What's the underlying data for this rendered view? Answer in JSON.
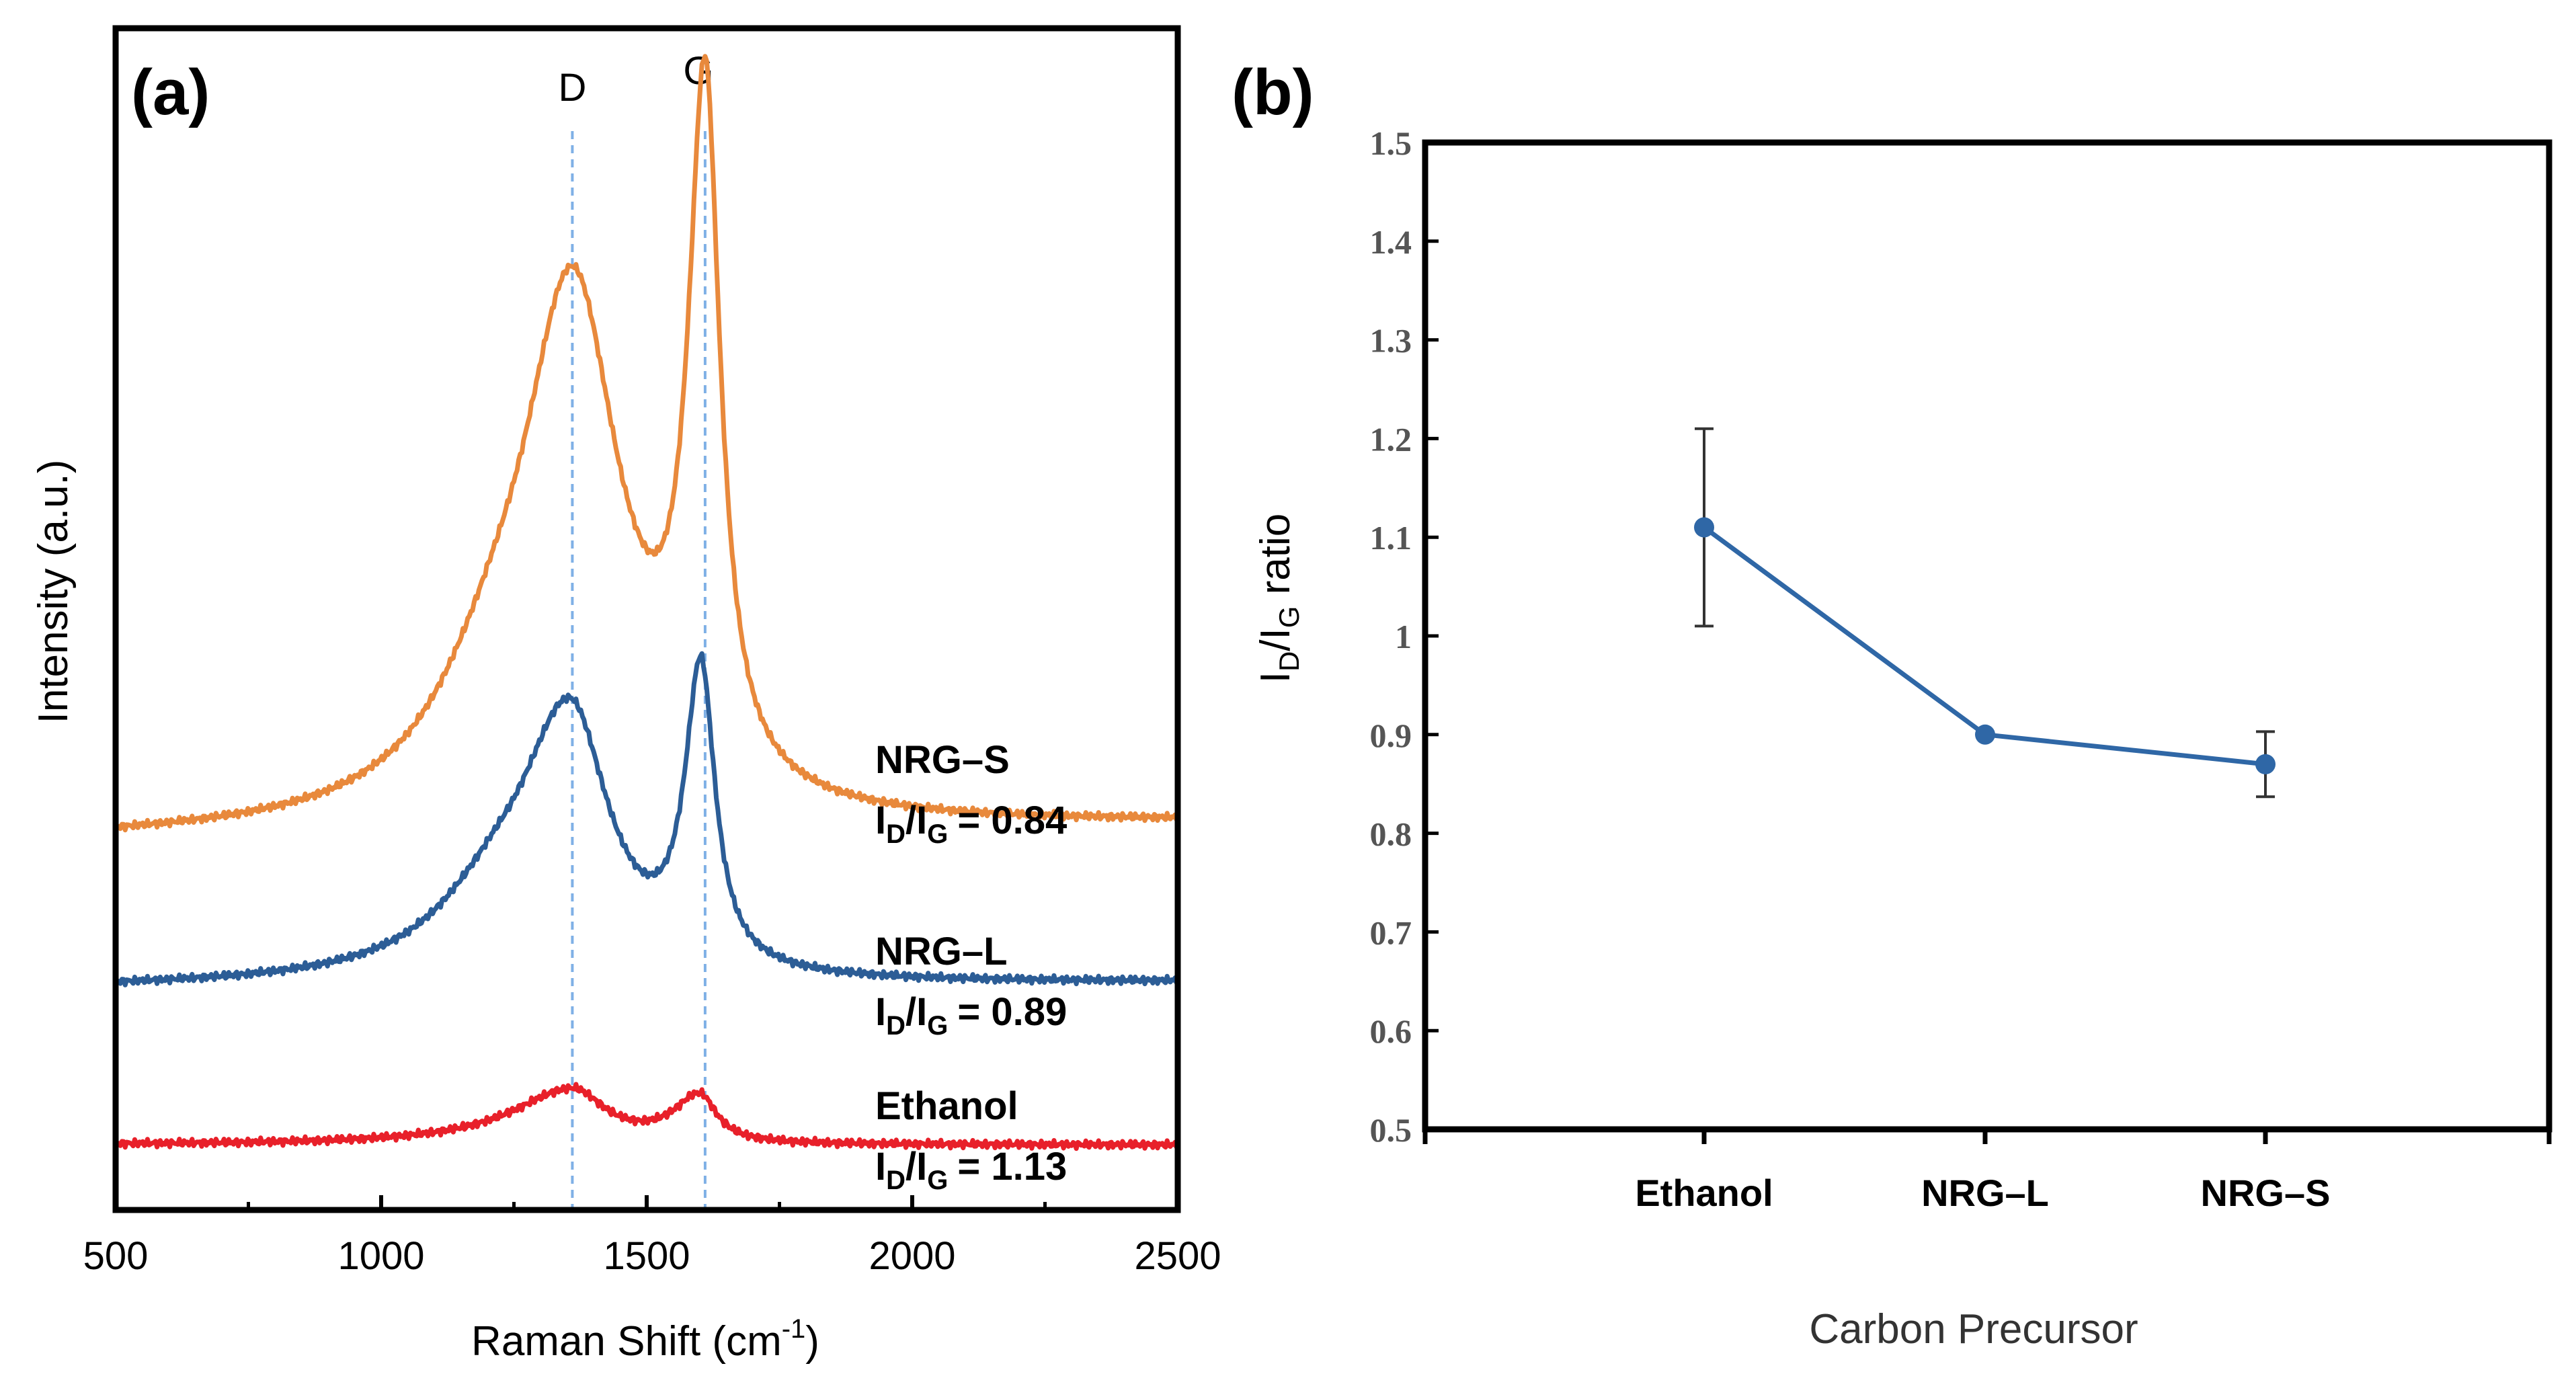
{
  "chart_data": [
    {
      "panel": "(a)",
      "type": "line",
      "title": "",
      "xlabel": "Raman Shift (cm",
      "xlabel_sup": "-1",
      "xlabel_close": ")",
      "ylabel": "Intensity (a.u.)",
      "xlim": [
        500,
        2500
      ],
      "ylim": [
        0,
        100
      ],
      "x_ticks": [
        500,
        1000,
        1500,
        2000,
        2500
      ],
      "x_tick_labels": [
        "500",
        "1000",
        "1500",
        "2000",
        "2500"
      ],
      "reference_lines": [
        {
          "label": "D",
          "x": 1360
        },
        {
          "label": "G",
          "x": 1610
        }
      ],
      "series": [
        {
          "name": "NRG–S",
          "ratio_label": "= 0.84",
          "color": "#e8893c",
          "baseline": 32,
          "tilt": 1.4,
          "peaks": [
            {
              "center": 1360,
              "height": 45,
              "width_left": 120,
              "width_right": 110
            },
            {
              "center": 1610,
              "height": 58,
              "width_left": 38,
              "width_right": 34
            },
            {
              "center": 1200,
              "height": 6,
              "width_left": 130,
              "width_right": 100
            }
          ]
        },
        {
          "name": "NRG–L",
          "ratio_label": "= 0.89",
          "color": "#2c5d96",
          "baseline": 19,
          "tilt": 0.5,
          "peaks": [
            {
              "center": 1355,
              "height": 23,
              "width_left": 120,
              "width_right": 90
            },
            {
              "center": 1602,
              "height": 25,
              "width_left": 36,
              "width_right": 32
            },
            {
              "center": 1200,
              "height": 3.5,
              "width_left": 130,
              "width_right": 90
            }
          ]
        },
        {
          "name": "Ethanol",
          "ratio_label": "= 1.13",
          "color": "#e8202a",
          "baseline": 5.5,
          "tilt": 0.0,
          "peaks": [
            {
              "center": 1360,
              "height": 4.6,
              "width_left": 140,
              "width_right": 75
            },
            {
              "center": 1600,
              "height": 4.0,
              "width_left": 60,
              "width_right": 38
            }
          ]
        }
      ],
      "ratio_prefix": "I",
      "ratio_sub_d": "D",
      "ratio_slash": "/I",
      "ratio_sub_g": "G"
    },
    {
      "panel": "(b)",
      "type": "line",
      "title": "",
      "xlabel": "Carbon Precursor",
      "ylabel_main": "I",
      "ylabel_sub_d": "D",
      "ylabel_slash": "/I",
      "ylabel_sub_g": "G",
      "ylabel_suffix": " ratio",
      "categories": [
        "Ethanol",
        "NRG–L",
        "NRG–S"
      ],
      "values": [
        1.11,
        0.9,
        0.87
      ],
      "errors": [
        0.1,
        0.005,
        0.033
      ],
      "ylim": [
        0.5,
        1.5
      ],
      "y_ticks": [
        0.5,
        0.6,
        0.7,
        0.8,
        0.9,
        1.0,
        1.1,
        1.2,
        1.3,
        1.4,
        1.5
      ],
      "y_tick_labels": [
        "0.5",
        "0.6",
        "0.7",
        "0.8",
        "0.9",
        "1",
        "1.1",
        "1.2",
        "1.3",
        "1.4",
        "1.5"
      ],
      "color": "#2f67a6"
    }
  ]
}
